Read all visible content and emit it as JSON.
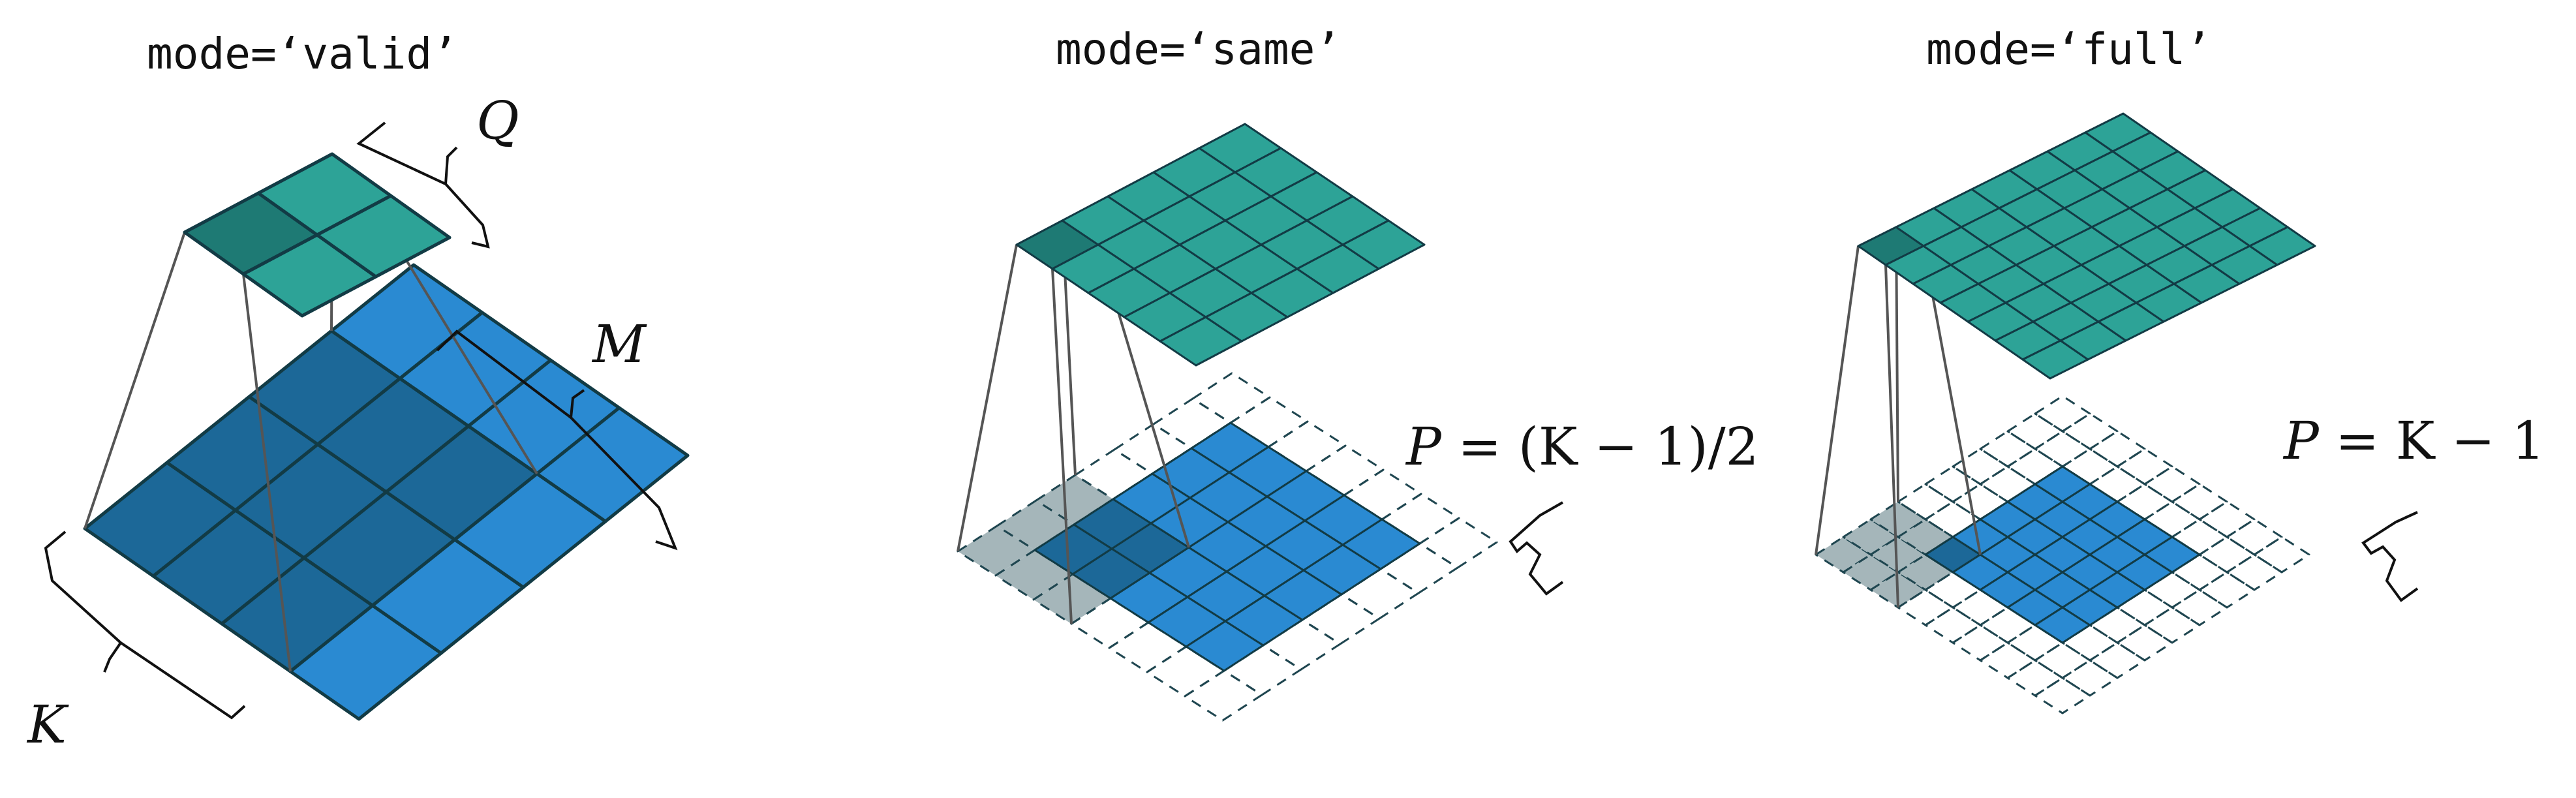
{
  "panels": [
    {
      "id": "valid",
      "mode_label": "mode=‘valid’",
      "labels": {
        "q": "Q",
        "m": "M",
        "k": "K"
      }
    },
    {
      "id": "same",
      "mode_label": "mode=‘same’",
      "formula": {
        "var": "P",
        "rest": " = (K − 1)/2"
      }
    },
    {
      "id": "full",
      "mode_label": "mode=‘full’",
      "formula": {
        "var": "P",
        "rest": " = K − 1"
      }
    }
  ],
  "colors": {
    "input": "#2a8ad2",
    "input_dark": "#1c6898",
    "output": "#2da397",
    "output_dark": "#1e7a74",
    "padding_overlap": "#a5b6ba",
    "grid_line": "#123b45",
    "dashed": "#1f4650",
    "projection": "#555555"
  }
}
